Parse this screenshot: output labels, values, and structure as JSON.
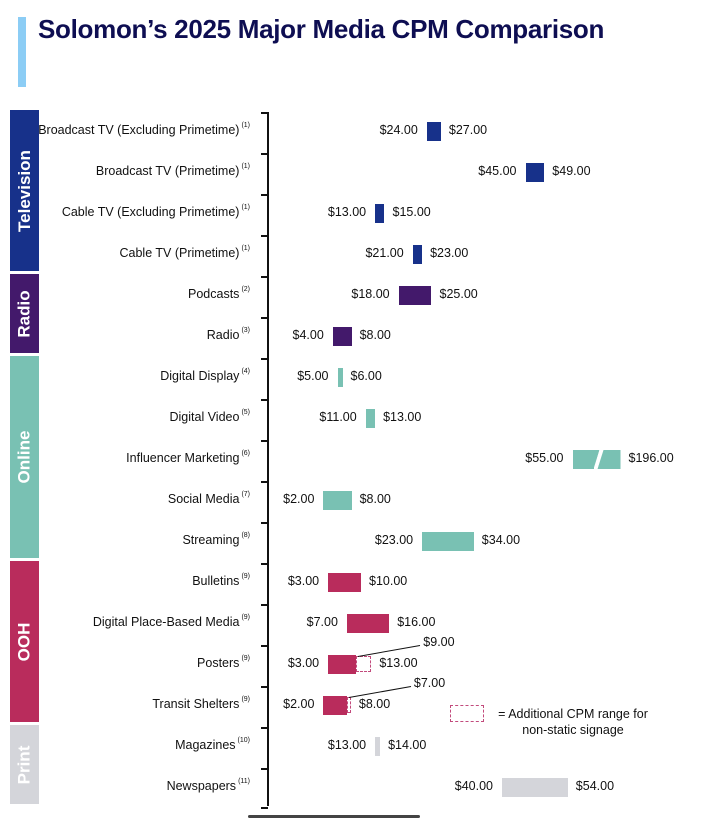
{
  "title": "Solomon’s 2025 Major Media CPM Comparison",
  "colors": {
    "title": "#0e0e52",
    "title_accent": "#8ccdf5",
    "Television": "#17318a",
    "Radio": "#43196b",
    "Online": "#79c1b3",
    "OOH": "#b92c5c",
    "Print": "#d4d5da",
    "dashed": "#c24a7c"
  },
  "legend": {
    "dashed_box_label": "= Additional CPM range for non-static signage"
  },
  "chart_data": {
    "type": "bar",
    "subtype": "floating-range-horizontal",
    "title": "Solomon’s 2025 Major Media CPM Comparison",
    "xlabel": "",
    "ylabel": "",
    "unit": "USD CPM",
    "grid": false,
    "categories_groups": [
      {
        "name": "Television",
        "rows": [
          0,
          1,
          2,
          3
        ]
      },
      {
        "name": "Radio",
        "rows": [
          4,
          5
        ]
      },
      {
        "name": "Online",
        "rows": [
          6,
          7,
          8,
          9,
          10
        ]
      },
      {
        "name": "OOH",
        "rows": [
          11,
          12,
          13,
          14
        ]
      },
      {
        "name": "Print",
        "rows": [
          15,
          16
        ]
      }
    ],
    "rows": [
      {
        "label": "Broadcast TV (Excluding Primetime)",
        "note": "(1)",
        "group": "Television",
        "low": 24,
        "high": 27,
        "low_label": "$24.00",
        "high_label": "$27.00"
      },
      {
        "label": "Broadcast TV (Primetime)",
        "note": "(1)",
        "group": "Television",
        "low": 45,
        "high": 49,
        "low_label": "$45.00",
        "high_label": "$49.00"
      },
      {
        "label": "Cable TV (Excluding Primetime)",
        "note": "(1)",
        "group": "Television",
        "low": 13,
        "high": 15,
        "low_label": "$13.00",
        "high_label": "$15.00"
      },
      {
        "label": "Cable TV (Primetime)",
        "note": "(1)",
        "group": "Television",
        "low": 21,
        "high": 23,
        "low_label": "$21.00",
        "high_label": "$23.00"
      },
      {
        "label": "Podcasts",
        "note": "(2)",
        "group": "Radio",
        "low": 18,
        "high": 25,
        "low_label": "$18.00",
        "high_label": "$25.00"
      },
      {
        "label": "Radio",
        "note": "(3)",
        "group": "Radio",
        "low": 4,
        "high": 8,
        "low_label": "$4.00",
        "high_label": "$8.00"
      },
      {
        "label": "Digital Display",
        "note": "(4)",
        "group": "Online",
        "low": 5,
        "high": 6,
        "low_label": "$5.00",
        "high_label": "$6.00"
      },
      {
        "label": "Digital Video",
        "note": "(5)",
        "group": "Online",
        "low": 11,
        "high": 13,
        "low_label": "$11.00",
        "high_label": "$13.00"
      },
      {
        "label": "Influencer Marketing",
        "note": "(6)",
        "group": "Online",
        "low": 55,
        "high": 196,
        "low_label": "$55.00",
        "high_label": "$196.00",
        "broken_axis": true
      },
      {
        "label": "Social Media",
        "note": "(7)",
        "group": "Online",
        "low": 2,
        "high": 8,
        "low_label": "$2.00",
        "high_label": "$8.00"
      },
      {
        "label": "Streaming",
        "note": "(8)",
        "group": "Online",
        "low": 23,
        "high": 34,
        "low_label": "$23.00",
        "high_label": "$34.00"
      },
      {
        "label": "Bulletins",
        "note": "(9)",
        "group": "OOH",
        "low": 3,
        "high": 10,
        "low_label": "$3.00",
        "high_label": "$10.00"
      },
      {
        "label": "Digital Place-Based Media",
        "note": "(9)",
        "group": "OOH",
        "low": 7,
        "high": 16,
        "low_label": "$7.00",
        "high_label": "$16.00"
      },
      {
        "label": "Posters",
        "note": "(9)",
        "group": "OOH",
        "low": 3,
        "high": 13,
        "static_high": 9,
        "low_label": "$3.00",
        "high_label": "$13.00",
        "static_high_label": "$9.00"
      },
      {
        "label": "Transit Shelters",
        "note": "(9)",
        "group": "OOH",
        "low": 2,
        "high": 8,
        "static_high": 7,
        "low_label": "$2.00",
        "high_label": "$8.00",
        "static_high_label": "$7.00"
      },
      {
        "label": "Magazines",
        "note": "(10)",
        "group": "Print",
        "low": 13,
        "high": 14,
        "low_label": "$13.00",
        "high_label": "$14.00"
      },
      {
        "label": "Newspapers",
        "note": "(11)",
        "group": "Print",
        "low": 40,
        "high": 54,
        "low_label": "$40.00",
        "high_label": "$54.00"
      }
    ]
  }
}
